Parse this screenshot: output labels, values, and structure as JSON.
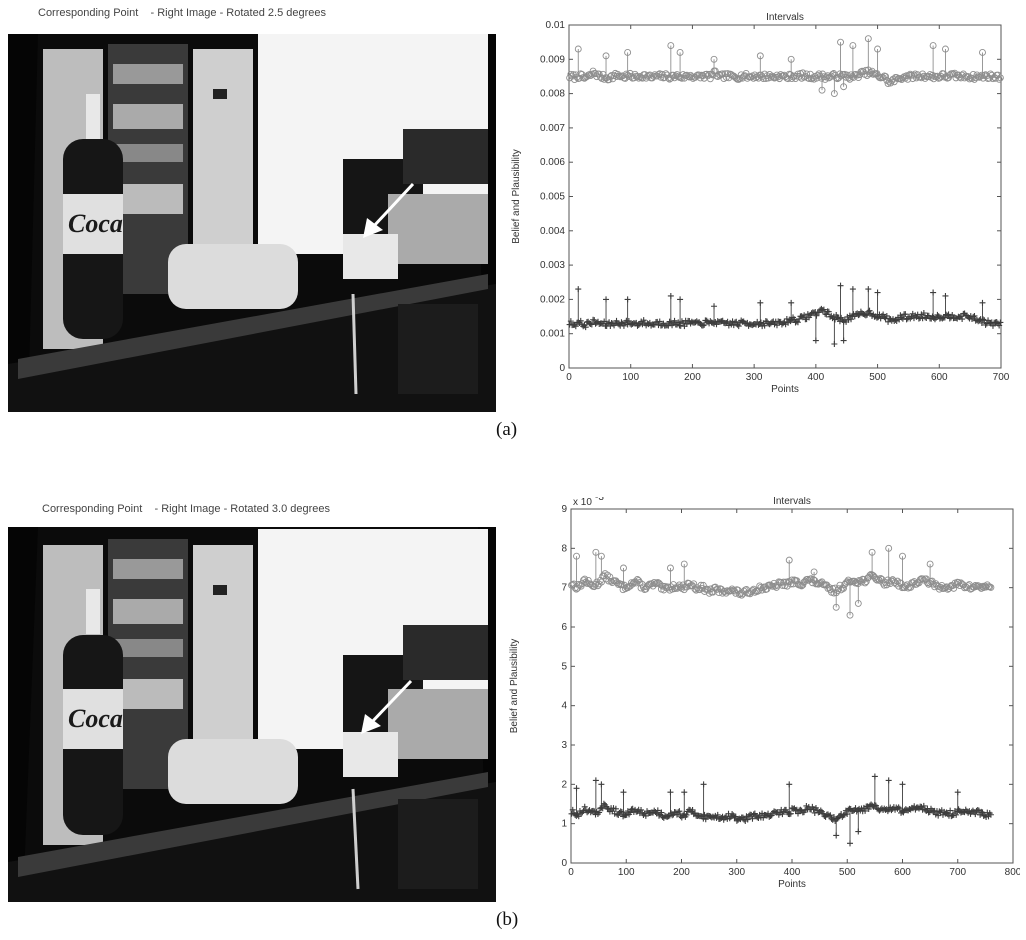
{
  "figures": [
    {
      "photo_title": "Corresponding Point    - Right Image - Rotated 2.5 degrees",
      "caption": "(a)",
      "logo_text": "Coca"
    },
    {
      "photo_title": "Corresponding Point    - Right Image - Rotated 3.0 degrees",
      "caption": "(b)",
      "logo_text": "Coca"
    }
  ],
  "colors": {
    "upper_series": "#8e8e8e",
    "lower_series": "#3d3d3d",
    "axis": "#555555",
    "photo_bg": "#050505"
  },
  "chart_data": [
    {
      "type": "scatter",
      "title": "Intervals",
      "xlabel": "Points",
      "ylabel": "Belief and Plausibility",
      "xlim": [
        0,
        700
      ],
      "ylim": [
        0,
        0.01
      ],
      "x_ticks": [
        "0",
        "100",
        "200",
        "300",
        "400",
        "500",
        "600",
        "700"
      ],
      "y_ticks": [
        "0",
        "0.001",
        "0.002",
        "0.003",
        "0.004",
        "0.005",
        "0.006",
        "0.007",
        "0.008",
        "0.009",
        "0.01"
      ],
      "y_exponent_label": "",
      "grid": false,
      "series": [
        {
          "marker": "circle",
          "x_range": [
            1,
            700
          ],
          "values": [
            0.0085,
            0.00848,
            0.00852,
            0.00845,
            0.0085,
            0.00862,
            0.00852,
            0.00848,
            0.00846,
            0.0085,
            0.00855,
            0.00848,
            0.00852,
            0.0085,
            0.00849,
            0.00853,
            0.0085,
            0.00847,
            0.00852,
            0.0085,
            0.00851,
            0.00848,
            0.00852,
            0.00849,
            0.0085,
            0.00853,
            0.00848,
            0.0085,
            0.00852,
            0.0085,
            0.0086,
            0.00848,
            0.00852,
            0.0085,
            0.0085,
            0.00849,
            0.00853,
            0.00848,
            0.00852,
            0.0085,
            0.0085,
            0.00851,
            0.00848,
            0.00852,
            0.0085,
            0.00848,
            0.00852,
            0.0085,
            0.00853,
            0.0085,
            0.00849,
            0.0085,
            0.00852,
            0.00848,
            0.0085,
            0.00852,
            0.0085,
            0.00853,
            0.00848,
            0.0085,
            0.00858,
            0.0086,
            0.00862,
            0.00855,
            0.0085,
            0.00848,
            0.0083,
            0.0084,
            0.00845,
            0.0085,
            0.00848,
            0.00852,
            0.0085,
            0.00853,
            0.0085,
            0.0085,
            0.00849,
            0.00852,
            0.0085,
            0.00853,
            0.00851,
            0.0085,
            0.00852,
            0.00848,
            0.0085,
            0.00849,
            0.00852,
            0.0085,
            0.00848,
            0.0085
          ],
          "peaks": [
            {
              "x": 15,
              "y": 0.0093
            },
            {
              "x": 60,
              "y": 0.0091
            },
            {
              "x": 95,
              "y": 0.0092
            },
            {
              "x": 165,
              "y": 0.0094
            },
            {
              "x": 180,
              "y": 0.0092
            },
            {
              "x": 235,
              "y": 0.009
            },
            {
              "x": 310,
              "y": 0.0091
            },
            {
              "x": 360,
              "y": 0.009
            },
            {
              "x": 440,
              "y": 0.0095
            },
            {
              "x": 460,
              "y": 0.0094
            },
            {
              "x": 485,
              "y": 0.0096
            },
            {
              "x": 500,
              "y": 0.0093
            },
            {
              "x": 590,
              "y": 0.0094
            },
            {
              "x": 610,
              "y": 0.0093
            },
            {
              "x": 670,
              "y": 0.0092
            }
          ],
          "dips": [
            {
              "x": 410,
              "y": 0.0081
            },
            {
              "x": 430,
              "y": 0.008
            },
            {
              "x": 445,
              "y": 0.0082
            }
          ]
        },
        {
          "marker": "plus",
          "x_range": [
            1,
            700
          ],
          "values": [
            0.0013,
            0.00128,
            0.00132,
            0.00125,
            0.0013,
            0.00134,
            0.00131,
            0.00128,
            0.00126,
            0.0013,
            0.00133,
            0.00128,
            0.00132,
            0.0013,
            0.00129,
            0.00133,
            0.0013,
            0.00127,
            0.00132,
            0.0013,
            0.00131,
            0.00128,
            0.00132,
            0.00129,
            0.0013,
            0.00133,
            0.00128,
            0.0013,
            0.00132,
            0.0013,
            0.00136,
            0.00128,
            0.00132,
            0.0013,
            0.0013,
            0.00129,
            0.00133,
            0.00128,
            0.00132,
            0.0013,
            0.0013,
            0.00131,
            0.00128,
            0.00132,
            0.0013,
            0.00138,
            0.00142,
            0.0014,
            0.00145,
            0.0015,
            0.00158,
            0.0016,
            0.0017,
            0.00162,
            0.0015,
            0.00148,
            0.0014,
            0.00142,
            0.00148,
            0.0015,
            0.00158,
            0.0016,
            0.00162,
            0.00155,
            0.0015,
            0.00148,
            0.0014,
            0.0014,
            0.00145,
            0.0015,
            0.00148,
            0.00152,
            0.0015,
            0.00153,
            0.0015,
            0.0015,
            0.00149,
            0.00152,
            0.0015,
            0.00153,
            0.00151,
            0.0015,
            0.00152,
            0.00148,
            0.0014,
            0.00139,
            0.00132,
            0.0013,
            0.00128,
            0.0013
          ],
          "peaks": [
            {
              "x": 15,
              "y": 0.0023
            },
            {
              "x": 60,
              "y": 0.002
            },
            {
              "x": 95,
              "y": 0.002
            },
            {
              "x": 165,
              "y": 0.0021
            },
            {
              "x": 180,
              "y": 0.002
            },
            {
              "x": 235,
              "y": 0.0018
            },
            {
              "x": 310,
              "y": 0.0019
            },
            {
              "x": 360,
              "y": 0.0019
            },
            {
              "x": 440,
              "y": 0.0024
            },
            {
              "x": 460,
              "y": 0.0023
            },
            {
              "x": 485,
              "y": 0.0023
            },
            {
              "x": 500,
              "y": 0.0022
            },
            {
              "x": 590,
              "y": 0.0022
            },
            {
              "x": 610,
              "y": 0.0021
            },
            {
              "x": 670,
              "y": 0.0019
            }
          ],
          "dips": [
            {
              "x": 400,
              "y": 0.0008
            },
            {
              "x": 430,
              "y": 0.0007
            },
            {
              "x": 445,
              "y": 0.0008
            }
          ]
        }
      ]
    },
    {
      "type": "scatter",
      "title": "Intervals",
      "xlabel": "Points",
      "ylabel": "Belief and Plausibility",
      "xlim": [
        0,
        800
      ],
      "ylim": [
        0,
        9
      ],
      "x_ticks": [
        "0",
        "100",
        "200",
        "300",
        "400",
        "500",
        "600",
        "700",
        "800"
      ],
      "y_ticks": [
        "0",
        "1",
        "2",
        "3",
        "4",
        "5",
        "6",
        "7",
        "8",
        "9"
      ],
      "y_exponent_label": "x 10",
      "y_exponent_power": "-3",
      "grid": false,
      "series": [
        {
          "marker": "circle",
          "x_range": [
            1,
            760
          ],
          "values": [
            7.1,
            7.0,
            7.2,
            7.05,
            7.1,
            7.3,
            7.2,
            7.1,
            7.0,
            7.1,
            7.15,
            7.0,
            7.05,
            7.1,
            6.95,
            7.0,
            7.05,
            7.0,
            7.1,
            7.0,
            7.0,
            6.9,
            6.95,
            6.9,
            6.95,
            6.9,
            6.85,
            6.9,
            6.95,
            7.0,
            7.0,
            7.05,
            7.1,
            7.1,
            7.15,
            7.1,
            7.2,
            7.15,
            7.1,
            7.0,
            6.9,
            7.0,
            7.1,
            7.2,
            7.15,
            7.2,
            7.3,
            7.2,
            7.1,
            7.2,
            7.1,
            7.0,
            7.1,
            7.15,
            7.2,
            7.1,
            7.0,
            7.05,
            7.0,
            7.1,
            7.05,
            7.0,
            7.05,
            7.0,
            7.05
          ],
          "peaks": [
            {
              "x": 10,
              "y": 7.8
            },
            {
              "x": 45,
              "y": 7.9
            },
            {
              "x": 55,
              "y": 7.8
            },
            {
              "x": 95,
              "y": 7.5
            },
            {
              "x": 180,
              "y": 7.5
            },
            {
              "x": 205,
              "y": 7.6
            },
            {
              "x": 395,
              "y": 7.7
            },
            {
              "x": 440,
              "y": 7.4
            },
            {
              "x": 545,
              "y": 7.9
            },
            {
              "x": 575,
              "y": 8.0
            },
            {
              "x": 600,
              "y": 7.8
            },
            {
              "x": 650,
              "y": 7.6
            }
          ],
          "dips": [
            {
              "x": 480,
              "y": 6.5
            },
            {
              "x": 505,
              "y": 6.3
            },
            {
              "x": 520,
              "y": 6.6
            }
          ]
        },
        {
          "marker": "plus",
          "x_range": [
            1,
            760
          ],
          "values": [
            1.3,
            1.2,
            1.4,
            1.25,
            1.3,
            1.45,
            1.35,
            1.3,
            1.2,
            1.3,
            1.35,
            1.25,
            1.3,
            1.3,
            1.2,
            1.25,
            1.3,
            1.2,
            1.3,
            1.25,
            1.2,
            1.15,
            1.2,
            1.15,
            1.2,
            1.15,
            1.1,
            1.15,
            1.2,
            1.2,
            1.2,
            1.25,
            1.3,
            1.3,
            1.35,
            1.3,
            1.4,
            1.35,
            1.3,
            1.2,
            1.1,
            1.2,
            1.3,
            1.4,
            1.35,
            1.4,
            1.5,
            1.4,
            1.3,
            1.4,
            1.35,
            1.3,
            1.4,
            1.45,
            1.4,
            1.3,
            1.25,
            1.3,
            1.25,
            1.3,
            1.3,
            1.25,
            1.3,
            1.2,
            1.25
          ],
          "peaks": [
            {
              "x": 10,
              "y": 1.9
            },
            {
              "x": 45,
              "y": 2.1
            },
            {
              "x": 55,
              "y": 2.0
            },
            {
              "x": 95,
              "y": 1.8
            },
            {
              "x": 180,
              "y": 1.8
            },
            {
              "x": 205,
              "y": 1.8
            },
            {
              "x": 240,
              "y": 2.0
            },
            {
              "x": 395,
              "y": 2.0
            },
            {
              "x": 550,
              "y": 2.2
            },
            {
              "x": 575,
              "y": 2.1
            },
            {
              "x": 600,
              "y": 2.0
            },
            {
              "x": 700,
              "y": 1.8
            }
          ],
          "dips": [
            {
              "x": 480,
              "y": 0.7
            },
            {
              "x": 505,
              "y": 0.5
            },
            {
              "x": 520,
              "y": 0.8
            }
          ]
        }
      ]
    }
  ]
}
